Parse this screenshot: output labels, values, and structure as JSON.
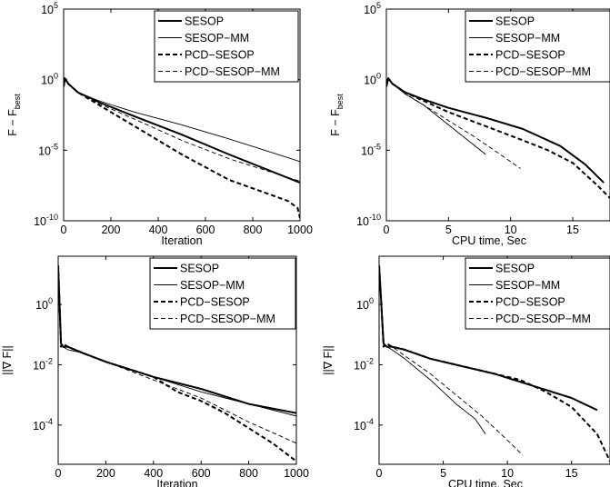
{
  "chart_data": [
    {
      "type": "line",
      "ylog": true,
      "xlabel": "Iteration",
      "ylabel": "F − F",
      "ylabel_sub": "best",
      "xlim": [
        0,
        1000
      ],
      "ylim_exp": [
        -10,
        5
      ],
      "xticks": [
        0,
        200,
        400,
        600,
        800,
        1000
      ],
      "yticks_exp": [
        -10,
        -5,
        0,
        5
      ],
      "legend": "top-right",
      "series": [
        {
          "name": "SESOP",
          "style": "solid-thick",
          "x": [
            0,
            5,
            20,
            60,
            150,
            300,
            500,
            700,
            850,
            1000
          ],
          "y": [
            -0.5,
            0.1,
            -0.3,
            -0.9,
            -1.6,
            -2.6,
            -3.9,
            -5.3,
            -6.3,
            -7.3
          ]
        },
        {
          "name": "SESOP−MM",
          "style": "solid-thin",
          "x": [
            0,
            5,
            20,
            60,
            150,
            300,
            500,
            700,
            850,
            1000
          ],
          "y": [
            -0.5,
            0.1,
            -0.3,
            -0.9,
            -1.5,
            -2.3,
            -3.2,
            -4.2,
            -5.0,
            -5.8
          ]
        },
        {
          "name": "PCD−SESOP",
          "style": "dash-thick",
          "x": [
            0,
            5,
            20,
            60,
            150,
            300,
            500,
            700,
            850,
            950,
            990,
            1000
          ],
          "y": [
            -0.5,
            0.1,
            -0.3,
            -0.9,
            -1.8,
            -3.3,
            -5.3,
            -7.1,
            -8.0,
            -8.6,
            -9.1,
            -9.8
          ]
        },
        {
          "name": "PCD−SESOP−MM",
          "style": "dash-thin",
          "x": [
            0,
            5,
            20,
            60,
            150,
            300,
            500,
            700,
            850,
            1000
          ],
          "y": [
            -0.5,
            0.1,
            -0.3,
            -0.9,
            -1.7,
            -2.8,
            -4.3,
            -5.6,
            -6.4,
            -7.2
          ]
        }
      ]
    },
    {
      "type": "line",
      "ylog": true,
      "xlabel": "CPU time, Sec",
      "ylabel": "F − F",
      "ylabel_sub": "best",
      "xlim": [
        0,
        18
      ],
      "ylim_exp": [
        -10,
        5
      ],
      "xticks": [
        0,
        5,
        10,
        15
      ],
      "yticks_exp": [
        -10,
        -5,
        0,
        5
      ],
      "legend": "top-right",
      "series": [
        {
          "name": "SESOP",
          "style": "solid-thick",
          "x": [
            0,
            0.15,
            0.5,
            1.5,
            3,
            5,
            8,
            11,
            14,
            16,
            17.5
          ],
          "y": [
            -0.5,
            0.1,
            -0.3,
            -0.9,
            -1.4,
            -2.0,
            -2.7,
            -3.5,
            -4.7,
            -6.0,
            -7.3
          ]
        },
        {
          "name": "SESOP−MM",
          "style": "solid-thin",
          "x": [
            0,
            0.15,
            0.5,
            1.5,
            3,
            5,
            7,
            8
          ],
          "y": [
            -0.5,
            0.1,
            -0.3,
            -1.0,
            -1.8,
            -3.2,
            -4.6,
            -5.3
          ]
        },
        {
          "name": "PCD−SESOP",
          "style": "dash-thick",
          "x": [
            0,
            0.15,
            0.5,
            1.5,
            3,
            5,
            8,
            11,
            13,
            15,
            17,
            18
          ],
          "y": [
            -0.5,
            0.1,
            -0.3,
            -0.9,
            -1.5,
            -2.3,
            -3.3,
            -4.3,
            -5.0,
            -5.9,
            -7.5,
            -8.4
          ]
        },
        {
          "name": "PCD−SESOP−MM",
          "style": "dash-thin",
          "x": [
            0,
            0.15,
            0.5,
            1.5,
            3,
            5,
            7,
            9,
            10.8
          ],
          "y": [
            -0.5,
            0.1,
            -0.3,
            -1.0,
            -1.8,
            -2.9,
            -4.0,
            -5.2,
            -6.3
          ]
        }
      ]
    },
    {
      "type": "line",
      "ylog": true,
      "xlabel": "Iteration",
      "ylabel": "||∇ F||",
      "ylabel_sub": "",
      "xlim": [
        0,
        1000
      ],
      "ylim_exp": [
        -5.3,
        1.6
      ],
      "xticks": [
        0,
        200,
        400,
        600,
        800,
        1000
      ],
      "yticks_exp": [
        -4,
        -2,
        0
      ],
      "legend": "top-right",
      "series": [
        {
          "name": "SESOP",
          "style": "solid-thick",
          "x": [
            0,
            5,
            12,
            20,
            40,
            100,
            200,
            400,
            600,
            800,
            1000
          ],
          "y": [
            1.3,
            0.2,
            -1.3,
            -1.4,
            -1.4,
            -1.6,
            -1.9,
            -2.4,
            -2.8,
            -3.3,
            -3.6
          ]
        },
        {
          "name": "SESOP−MM",
          "style": "solid-thin",
          "x": [
            0,
            5,
            12,
            20,
            40,
            100,
            200,
            400,
            600,
            800,
            1000
          ],
          "y": [
            1.3,
            0.2,
            -1.3,
            -1.4,
            -1.5,
            -1.6,
            -1.9,
            -2.4,
            -2.9,
            -3.3,
            -3.7
          ]
        },
        {
          "name": "PCD−SESOP",
          "style": "dash-thick",
          "x": [
            0,
            5,
            12,
            20,
            40,
            100,
            200,
            400,
            500,
            600,
            700,
            800,
            900,
            1000
          ],
          "y": [
            1.3,
            0.2,
            -1.4,
            -1.3,
            -1.4,
            -1.6,
            -1.9,
            -2.4,
            -2.9,
            -3.2,
            -3.6,
            -4.1,
            -4.6,
            -5.2
          ]
        },
        {
          "name": "PCD−SESOP−MM",
          "style": "dash-thin",
          "x": [
            0,
            5,
            12,
            20,
            40,
            100,
            200,
            400,
            600,
            800,
            1000
          ],
          "y": [
            1.3,
            0.2,
            -1.4,
            -1.3,
            -1.4,
            -1.6,
            -1.9,
            -2.5,
            -3.1,
            -3.9,
            -4.6
          ]
        }
      ]
    },
    {
      "type": "line",
      "ylog": true,
      "xlabel": "CPU time, Sec",
      "ylabel": "||∇ F||",
      "ylabel_sub": "",
      "xlim": [
        0,
        18
      ],
      "ylim_exp": [
        -5.3,
        1.6
      ],
      "xticks": [
        0,
        5,
        10,
        15
      ],
      "yticks_exp": [
        -4,
        -2,
        0
      ],
      "legend": "top-right",
      "series": [
        {
          "name": "SESOP",
          "style": "solid-thick",
          "x": [
            0,
            0.15,
            0.35,
            0.6,
            1.0,
            2,
            4,
            6,
            9,
            12,
            15,
            17
          ],
          "y": [
            1.3,
            0.2,
            -1.3,
            -1.4,
            -1.4,
            -1.5,
            -1.8,
            -2.0,
            -2.3,
            -2.7,
            -3.1,
            -3.5
          ]
        },
        {
          "name": "SESOP−MM",
          "style": "solid-thin",
          "x": [
            0,
            0.15,
            0.35,
            0.6,
            1.0,
            2,
            4,
            6,
            7.5,
            8.3
          ],
          "y": [
            1.3,
            0.2,
            -1.3,
            -1.4,
            -1.5,
            -1.8,
            -2.5,
            -3.3,
            -3.8,
            -4.3
          ]
        },
        {
          "name": "PCD−SESOP",
          "style": "dash-thick",
          "x": [
            0,
            0.15,
            0.35,
            0.6,
            1.0,
            2,
            4,
            6,
            9,
            11,
            13,
            15,
            17,
            18
          ],
          "y": [
            1.3,
            0.2,
            -1.4,
            -1.3,
            -1.4,
            -1.5,
            -1.8,
            -2.0,
            -2.3,
            -2.5,
            -2.9,
            -3.4,
            -4.3,
            -5.2
          ]
        },
        {
          "name": "PCD−SESOP−MM",
          "style": "dash-thin",
          "x": [
            0,
            0.15,
            0.35,
            0.6,
            1.0,
            2,
            4,
            6,
            8,
            10,
            11.2
          ],
          "y": [
            1.3,
            0.2,
            -1.4,
            -1.3,
            -1.4,
            -1.7,
            -2.3,
            -3.0,
            -3.7,
            -4.5,
            -5.0
          ]
        }
      ]
    }
  ]
}
